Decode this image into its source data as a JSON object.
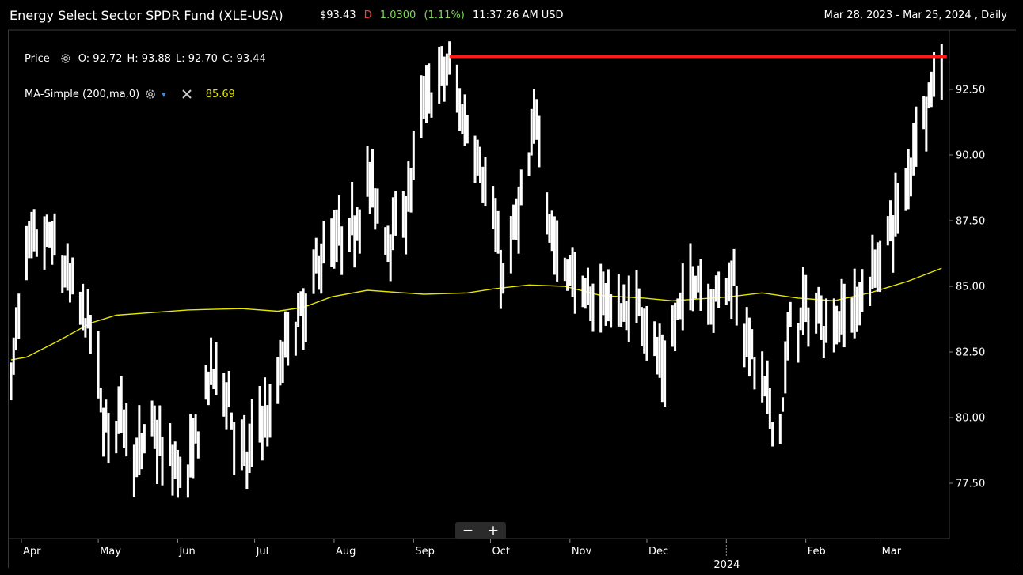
{
  "header": {
    "title": "Energy Select Sector SPDR Fund (XLE-USA)",
    "price": "$93.43",
    "flag": "D",
    "change": "1.0300",
    "change_pct": "(1.11%)",
    "time": "11:37:26 AM USD",
    "range": "Mar 28, 2023 - Mar 25, 2024 , Daily"
  },
  "legend": {
    "price_label": "Price",
    "o": "O: 92.72",
    "h": "H: 93.88",
    "l": "L: 92.70",
    "c": "C: 93.44",
    "ma_label": "MA-Simple (200,ma,0)",
    "ma_value": "85.69"
  },
  "zoom": {
    "minus": "−",
    "plus": "+"
  },
  "colors": {
    "bars": "#ffffff",
    "ma": "#e6e600",
    "resistance": "#ff1a1a",
    "grid": "#3a3a3a"
  },
  "chart_data": {
    "type": "ohlc",
    "y_ticks": [
      "92.50",
      "90.00",
      "87.50",
      "85.00",
      "82.50",
      "80.00",
      "77.50"
    ],
    "x_ticks": [
      "Apr",
      "May",
      "Jun",
      "Jul",
      "Aug",
      "Sep",
      "Oct",
      "Nov",
      "Dec",
      "2024",
      "Feb",
      "Mar"
    ],
    "ylim": [
      75.5,
      95.0
    ],
    "xlim": [
      "2023-03-28",
      "2024-03-28"
    ],
    "resistance": {
      "from": "2023-09-15",
      "to": "2024-03-27",
      "value": 93.75
    },
    "bar_anchors": [
      [
        "2023-03-28",
        81.5
      ],
      [
        "2023-04-03",
        86.3
      ],
      [
        "2023-04-12",
        86.8
      ],
      [
        "2023-04-19",
        85.3
      ],
      [
        "2023-04-25",
        84.0
      ],
      [
        "2023-04-28",
        83.5
      ],
      [
        "2023-05-03",
        80.0
      ],
      [
        "2023-05-05",
        79.3
      ],
      [
        "2023-05-10",
        80.5
      ],
      [
        "2023-05-16",
        78.3
      ],
      [
        "2023-05-22",
        79.7
      ],
      [
        "2023-05-26",
        78.5
      ],
      [
        "2023-06-02",
        78.0
      ],
      [
        "2023-06-05",
        77.8
      ],
      [
        "2023-06-14",
        81.8
      ],
      [
        "2023-06-20",
        81.2
      ],
      [
        "2023-06-23",
        79.5
      ],
      [
        "2023-06-28",
        78.2
      ],
      [
        "2023-07-03",
        80.2
      ],
      [
        "2023-07-07",
        79.7
      ],
      [
        "2023-07-11",
        81.8
      ],
      [
        "2023-07-14",
        83.2
      ],
      [
        "2023-07-21",
        84.0
      ],
      [
        "2023-07-26",
        86.0
      ],
      [
        "2023-08-01",
        86.6
      ],
      [
        "2023-08-08",
        87.0
      ],
      [
        "2023-08-14",
        89.1
      ],
      [
        "2023-08-21",
        87.0
      ],
      [
        "2023-08-28",
        87.4
      ],
      [
        "2023-09-05",
        92.0
      ],
      [
        "2023-09-12",
        93.0
      ],
      [
        "2023-09-15",
        93.3
      ],
      [
        "2023-09-20",
        91.5
      ],
      [
        "2023-09-26",
        90.2
      ],
      [
        "2023-10-02",
        87.5
      ],
      [
        "2023-10-06",
        85.2
      ],
      [
        "2023-10-12",
        87.8
      ],
      [
        "2023-10-16",
        89.3
      ],
      [
        "2023-10-19",
        91.8
      ],
      [
        "2023-10-23",
        88.2
      ],
      [
        "2023-10-27",
        86.0
      ],
      [
        "2023-11-02",
        85.5
      ],
      [
        "2023-11-08",
        84.2
      ],
      [
        "2023-11-14",
        84.8
      ],
      [
        "2023-11-17",
        84.2
      ],
      [
        "2023-11-22",
        84.0
      ],
      [
        "2023-11-29",
        84.3
      ],
      [
        "2023-12-05",
        82.3
      ],
      [
        "2023-12-08",
        81.5
      ],
      [
        "2023-12-13",
        84.0
      ],
      [
        "2023-12-20",
        85.5
      ],
      [
        "2023-12-27",
        84.5
      ],
      [
        "2024-01-03",
        85.5
      ],
      [
        "2024-01-08",
        83.5
      ],
      [
        "2024-01-12",
        82.0
      ],
      [
        "2024-01-16",
        81.0
      ],
      [
        "2024-01-19",
        80.0
      ],
      [
        "2024-01-22",
        79.8
      ],
      [
        "2024-01-26",
        83.5
      ],
      [
        "2024-02-01",
        84.0
      ],
      [
        "2024-02-06",
        83.8
      ],
      [
        "2024-02-12",
        83.5
      ],
      [
        "2024-02-16",
        84.0
      ],
      [
        "2024-02-21",
        84.2
      ],
      [
        "2024-02-26",
        85.3
      ],
      [
        "2024-03-01",
        86.0
      ],
      [
        "2024-03-06",
        87.5
      ],
      [
        "2024-03-11",
        88.5
      ],
      [
        "2024-03-14",
        90.5
      ],
      [
        "2024-03-18",
        91.8
      ],
      [
        "2024-03-21",
        92.5
      ],
      [
        "2024-03-25",
        93.44
      ]
    ],
    "ma_points": [
      [
        "2023-03-28",
        82.2
      ],
      [
        "2023-04-03",
        82.3
      ],
      [
        "2023-04-15",
        82.9
      ],
      [
        "2023-04-28",
        83.6
      ],
      [
        "2023-05-08",
        83.9
      ],
      [
        "2023-05-22",
        84.0
      ],
      [
        "2023-06-05",
        84.1
      ],
      [
        "2023-06-26",
        84.15
      ],
      [
        "2023-07-10",
        84.05
      ],
      [
        "2023-07-20",
        84.2
      ],
      [
        "2023-07-31",
        84.6
      ],
      [
        "2023-08-14",
        84.85
      ],
      [
        "2023-09-05",
        84.7
      ],
      [
        "2023-09-22",
        84.75
      ],
      [
        "2023-10-02",
        84.9
      ],
      [
        "2023-10-16",
        85.05
      ],
      [
        "2023-10-30",
        85.0
      ],
      [
        "2023-11-13",
        84.65
      ],
      [
        "2023-11-30",
        84.55
      ],
      [
        "2023-12-11",
        84.45
      ],
      [
        "2024-01-02",
        84.6
      ],
      [
        "2024-01-15",
        84.75
      ],
      [
        "2024-01-29",
        84.55
      ],
      [
        "2024-02-12",
        84.45
      ],
      [
        "2024-02-26",
        84.75
      ],
      [
        "2024-03-12",
        85.2
      ],
      [
        "2024-03-25",
        85.69
      ]
    ]
  }
}
